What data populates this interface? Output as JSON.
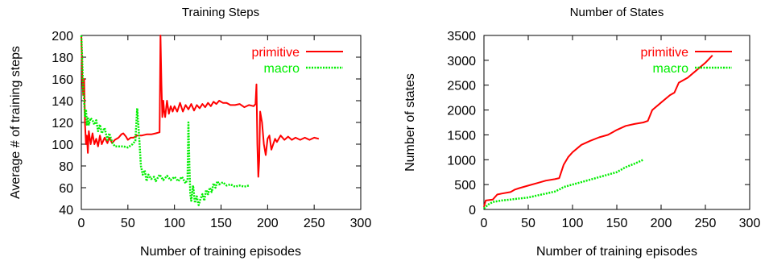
{
  "chart_data": [
    {
      "type": "line",
      "title": "Training Steps",
      "xlabel": "Number of training episodes",
      "ylabel": "Average # of training steps",
      "xlim": [
        0,
        300
      ],
      "ylim": [
        40,
        200
      ],
      "xticks": [
        0,
        50,
        100,
        150,
        200,
        250,
        300
      ],
      "yticks": [
        40,
        60,
        80,
        100,
        120,
        140,
        160,
        180,
        200
      ],
      "grid": false,
      "legend_position": "top-right",
      "series": [
        {
          "name": "primitive",
          "color": "#ff0000",
          "style": "solid",
          "points": [
            [
              0,
              200
            ],
            [
              1,
              160
            ],
            [
              2,
              145
            ],
            [
              3,
              160
            ],
            [
              4,
              118
            ],
            [
              5,
              100
            ],
            [
              6,
              108
            ],
            [
              7,
              92
            ],
            [
              8,
              112
            ],
            [
              10,
              100
            ],
            [
              12,
              110
            ],
            [
              14,
              100
            ],
            [
              16,
              105
            ],
            [
              18,
              98
            ],
            [
              20,
              108
            ],
            [
              22,
              100
            ],
            [
              25,
              106
            ],
            [
              28,
              101
            ],
            [
              30,
              106
            ],
            [
              33,
              101
            ],
            [
              36,
              104
            ],
            [
              40,
              106
            ],
            [
              43,
              109
            ],
            [
              45,
              110
            ],
            [
              48,
              107
            ],
            [
              50,
              104
            ],
            [
              53,
              106
            ],
            [
              56,
              106
            ],
            [
              60,
              108
            ],
            [
              65,
              108
            ],
            [
              70,
              109
            ],
            [
              75,
              109
            ],
            [
              80,
              110
            ],
            [
              84,
              111
            ],
            [
              85,
              200
            ],
            [
              86,
              155
            ],
            [
              87,
              125
            ],
            [
              88,
              140
            ],
            [
              89,
              130
            ],
            [
              90,
              125
            ],
            [
              92,
              140
            ],
            [
              94,
              128
            ],
            [
              96,
              135
            ],
            [
              98,
              130
            ],
            [
              100,
              135
            ],
            [
              103,
              130
            ],
            [
              106,
              138
            ],
            [
              109,
              130
            ],
            [
              112,
              136
            ],
            [
              115,
              132
            ],
            [
              118,
              137
            ],
            [
              121,
              131
            ],
            [
              124,
              136
            ],
            [
              127,
              133
            ],
            [
              130,
              137
            ],
            [
              133,
              134
            ],
            [
              136,
              138
            ],
            [
              139,
              135
            ],
            [
              142,
              139
            ],
            [
              145,
              137
            ],
            [
              148,
              140
            ],
            [
              152,
              138
            ],
            [
              156,
              138
            ],
            [
              160,
              136
            ],
            [
              165,
              136
            ],
            [
              170,
              137
            ],
            [
              175,
              134
            ],
            [
              180,
              136
            ],
            [
              185,
              135
            ],
            [
              187,
              137
            ],
            [
              188,
              155
            ],
            [
              189,
              100
            ],
            [
              190,
              70
            ],
            [
              191,
              85
            ],
            [
              192,
              130
            ],
            [
              194,
              120
            ],
            [
              196,
              100
            ],
            [
              198,
              90
            ],
            [
              200,
              105
            ],
            [
              202,
              108
            ],
            [
              204,
              95
            ],
            [
              206,
              100
            ],
            [
              208,
              105
            ],
            [
              210,
              102
            ],
            [
              214,
              108
            ],
            [
              218,
              104
            ],
            [
              222,
              107
            ],
            [
              226,
              104
            ],
            [
              230,
              106
            ],
            [
              235,
              104
            ],
            [
              240,
              106
            ],
            [
              245,
              104
            ],
            [
              250,
              106
            ],
            [
              255,
              105
            ]
          ]
        },
        {
          "name": "macro",
          "color": "#00ee00",
          "style": "dotted",
          "points": [
            [
              0,
              200
            ],
            [
              1,
              175
            ],
            [
              2,
              150
            ],
            [
              3,
              140
            ],
            [
              4,
              125
            ],
            [
              5,
              132
            ],
            [
              6,
              118
            ],
            [
              7,
              125
            ],
            [
              8,
              118
            ],
            [
              10,
              124
            ],
            [
              12,
              122
            ],
            [
              14,
              118
            ],
            [
              16,
              122
            ],
            [
              18,
              112
            ],
            [
              20,
              118
            ],
            [
              22,
              110
            ],
            [
              25,
              115
            ],
            [
              28,
              104
            ],
            [
              30,
              110
            ],
            [
              33,
              102
            ],
            [
              36,
              98
            ],
            [
              40,
              98
            ],
            [
              45,
              98
            ],
            [
              50,
              97
            ],
            [
              55,
              100
            ],
            [
              58,
              103
            ],
            [
              60,
              133
            ],
            [
              62,
              108
            ],
            [
              64,
              80
            ],
            [
              66,
              72
            ],
            [
              68,
              76
            ],
            [
              70,
              66
            ],
            [
              72,
              72
            ],
            [
              75,
              68
            ],
            [
              78,
              70
            ],
            [
              80,
              66
            ],
            [
              84,
              72
            ],
            [
              88,
              67
            ],
            [
              92,
              71
            ],
            [
              96,
              67
            ],
            [
              100,
              70
            ],
            [
              104,
              66
            ],
            [
              108,
              70
            ],
            [
              112,
              64
            ],
            [
              114,
              68
            ],
            [
              115,
              120
            ],
            [
              116,
              80
            ],
            [
              117,
              55
            ],
            [
              118,
              48
            ],
            [
              120,
              62
            ],
            [
              122,
              46
            ],
            [
              124,
              52
            ],
            [
              126,
              44
            ],
            [
              128,
              50
            ],
            [
              130,
              54
            ],
            [
              132,
              48
            ],
            [
              134,
              58
            ],
            [
              136,
              54
            ],
            [
              138,
              60
            ],
            [
              140,
              56
            ],
            [
              142,
              64
            ],
            [
              144,
              60
            ],
            [
              146,
              66
            ],
            [
              148,
              63
            ],
            [
              152,
              65
            ],
            [
              156,
              62
            ],
            [
              160,
              63
            ],
            [
              165,
              61
            ],
            [
              170,
              62
            ],
            [
              175,
              61
            ],
            [
              180,
              62
            ]
          ]
        }
      ]
    },
    {
      "type": "line",
      "title": "Number of States",
      "xlabel": "Number of training episodes",
      "ylabel": "Number of states",
      "xlim": [
        0,
        300
      ],
      "ylim": [
        0,
        3500
      ],
      "xticks": [
        0,
        50,
        100,
        150,
        200,
        250,
        300
      ],
      "yticks": [
        0,
        500,
        1000,
        1500,
        2000,
        2500,
        3000,
        3500
      ],
      "grid": false,
      "legend_position": "top-right",
      "series": [
        {
          "name": "primitive",
          "color": "#ff0000",
          "style": "solid",
          "points": [
            [
              0,
              50
            ],
            [
              2,
              180
            ],
            [
              10,
              200
            ],
            [
              15,
              300
            ],
            [
              20,
              320
            ],
            [
              30,
              350
            ],
            [
              35,
              400
            ],
            [
              40,
              430
            ],
            [
              50,
              480
            ],
            [
              60,
              530
            ],
            [
              70,
              580
            ],
            [
              80,
              610
            ],
            [
              85,
              630
            ],
            [
              90,
              900
            ],
            [
              95,
              1050
            ],
            [
              100,
              1150
            ],
            [
              110,
              1300
            ],
            [
              120,
              1380
            ],
            [
              130,
              1450
            ],
            [
              140,
              1500
            ],
            [
              150,
              1600
            ],
            [
              160,
              1680
            ],
            [
              170,
              1720
            ],
            [
              180,
              1750
            ],
            [
              185,
              1780
            ],
            [
              190,
              2000
            ],
            [
              200,
              2150
            ],
            [
              210,
              2300
            ],
            [
              215,
              2350
            ],
            [
              220,
              2550
            ],
            [
              230,
              2650
            ],
            [
              240,
              2800
            ],
            [
              250,
              2950
            ],
            [
              258,
              3100
            ]
          ]
        },
        {
          "name": "macro",
          "color": "#00ee00",
          "style": "dotted",
          "points": [
            [
              0,
              20
            ],
            [
              5,
              100
            ],
            [
              10,
              150
            ],
            [
              20,
              180
            ],
            [
              30,
              200
            ],
            [
              40,
              220
            ],
            [
              50,
              240
            ],
            [
              60,
              280
            ],
            [
              70,
              320
            ],
            [
              80,
              360
            ],
            [
              85,
              400
            ],
            [
              90,
              450
            ],
            [
              100,
              500
            ],
            [
              110,
              550
            ],
            [
              120,
              600
            ],
            [
              130,
              650
            ],
            [
              140,
              700
            ],
            [
              150,
              750
            ],
            [
              160,
              850
            ],
            [
              170,
              920
            ],
            [
              180,
              1000
            ]
          ]
        }
      ]
    }
  ]
}
